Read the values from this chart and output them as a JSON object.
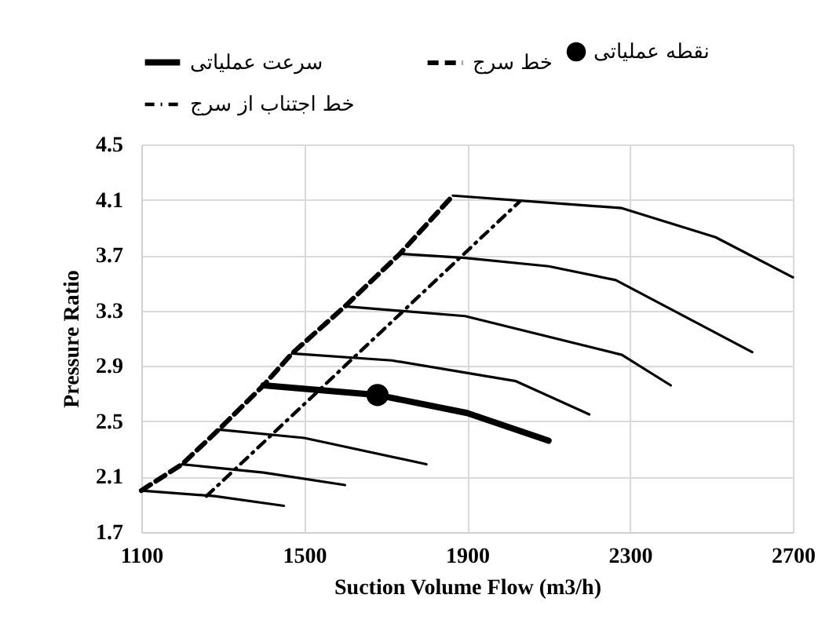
{
  "chart_data": {
    "type": "line",
    "xlabel": "Suction Volume Flow (m3/h)",
    "ylabel": "Pressure Ratio",
    "xlim": [
      1100,
      2700
    ],
    "xticks": [
      1100,
      1500,
      1900,
      2300,
      2700
    ],
    "ylim": [
      1.7,
      4.5
    ],
    "yticks": [
      1.7,
      2.1,
      2.5,
      2.9,
      3.3,
      3.7,
      4.1,
      4.5
    ],
    "grid": true,
    "legend": "top",
    "series": [
      {
        "color": "#000000",
        "x": [
          1100,
          1280,
          1450
        ],
        "values": [
          2.0,
          1.96,
          1.89
        ]
      },
      {
        "color": "#000000",
        "x": [
          1200,
          1400,
          1600
        ],
        "values": [
          2.19,
          2.13,
          2.04
        ]
      },
      {
        "color": "#000000",
        "x": [
          1290,
          1500,
          1800
        ],
        "values": [
          2.44,
          2.38,
          2.19
        ]
      },
      {
        "name": "سرعت عملیاتی",
        "color": "#000000",
        "x": [
          1400,
          1680,
          1900,
          2100
        ],
        "values": [
          2.76,
          2.69,
          2.56,
          2.36
        ]
      },
      {
        "color": "#000000",
        "x": [
          1470,
          1715,
          2020,
          2200
        ],
        "values": [
          2.99,
          2.94,
          2.79,
          2.55
        ]
      },
      {
        "color": "#000000",
        "x": [
          1600,
          1895,
          2280,
          2400
        ],
        "values": [
          3.33,
          3.26,
          2.98,
          2.76
        ]
      },
      {
        "color": "#000000",
        "x": [
          1735,
          1895,
          2100,
          2265,
          2600
        ],
        "values": [
          3.71,
          3.68,
          3.62,
          3.52,
          3.0
        ]
      },
      {
        "color": "#000000",
        "x": [
          1865,
          2280,
          2510,
          2700
        ],
        "values": [
          4.13,
          4.04,
          3.83,
          3.54
        ]
      },
      {
        "name": "نقطه عملیاتی",
        "type": "scatter",
        "marker": "circle",
        "color": "#000000",
        "x": [
          1680
        ],
        "values": [
          2.69
        ]
      },
      {
        "name": "خط سرج",
        "color": "#000000",
        "line_style": "dashed",
        "x": [
          1100,
          1200,
          1290,
          1400,
          1470,
          1600,
          1735,
          1865
        ],
        "values": [
          2.0,
          2.19,
          2.44,
          2.76,
          2.99,
          3.33,
          3.71,
          4.13
        ]
      },
      {
        "name": "خط اجتناب از سرج",
        "color": "#000000",
        "line_style": "dotted",
        "x": [
          1260,
          2030
        ],
        "values": [
          1.96,
          4.09
        ]
      }
    ]
  }
}
